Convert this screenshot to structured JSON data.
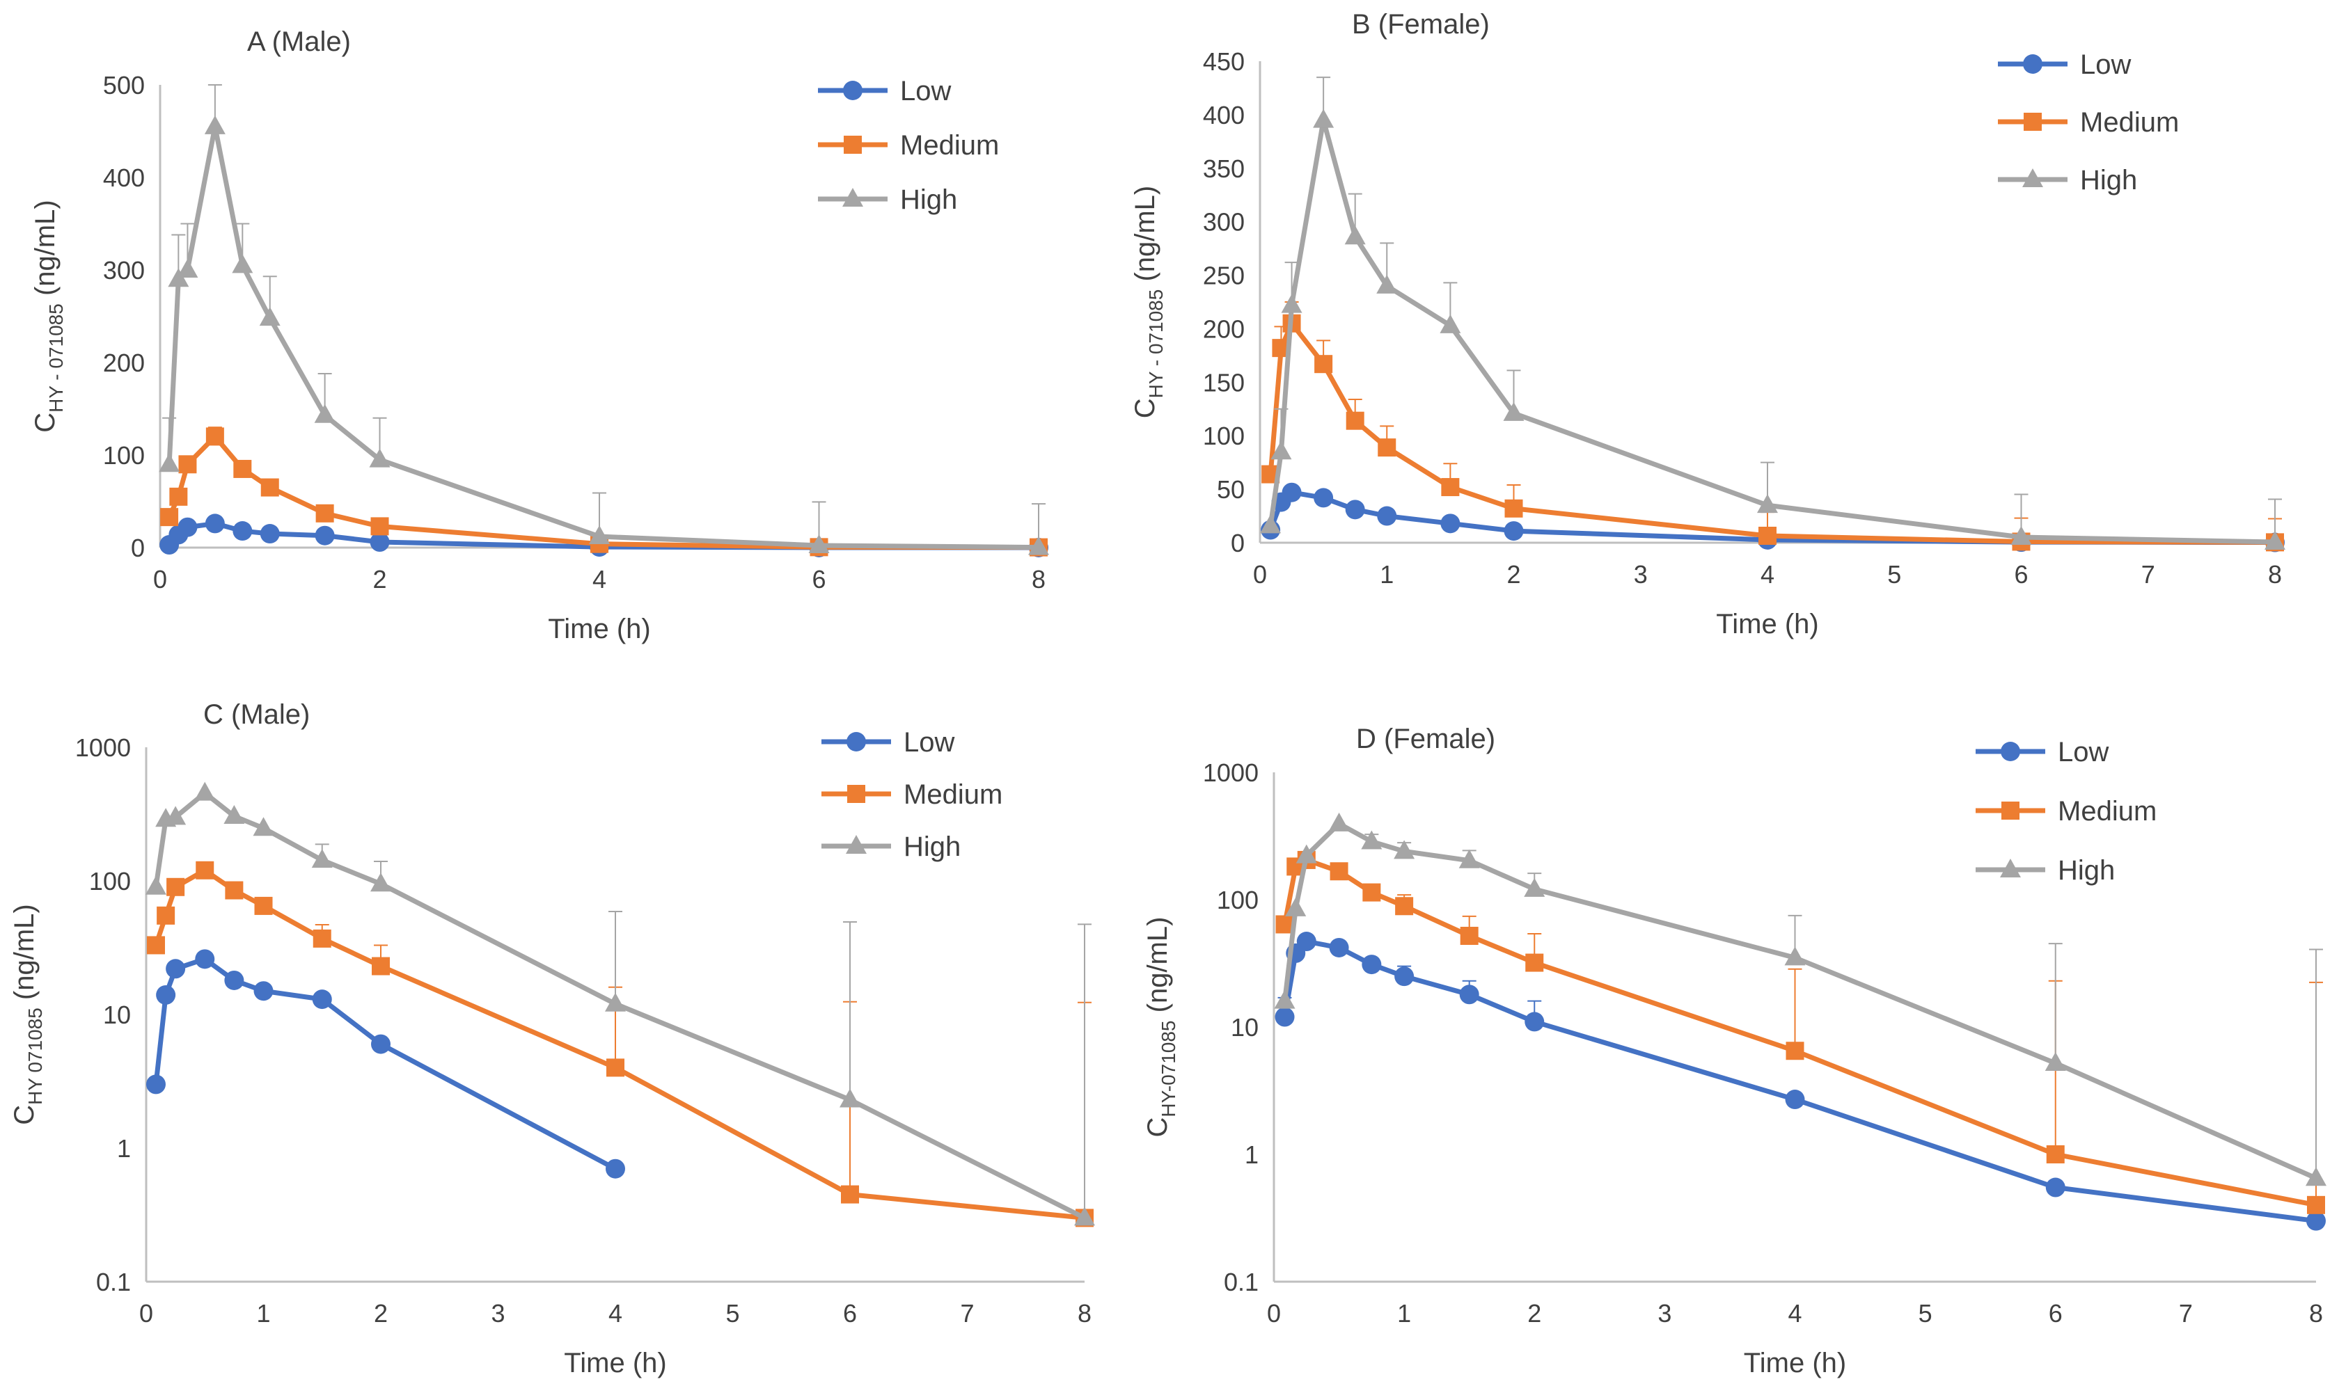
{
  "colors": {
    "low": "#4472C4",
    "medium": "#ED7D31",
    "high": "#A5A5A5"
  },
  "chart_data": [
    {
      "id": "A",
      "type": "line",
      "title": "A (Male)",
      "xlabel": "Time (h)",
      "ylabel_main": "C",
      "ylabel_sub": "HY - 071085",
      "ylabel_unit": "(ng/mL)",
      "yscale": "linear",
      "xlim": [
        0,
        8
      ],
      "ylim": [
        0,
        500
      ],
      "xticks": [
        0,
        2,
        4,
        6,
        8
      ],
      "yticks": [
        0,
        100,
        200,
        300,
        400,
        500
      ],
      "legend_position": "top-right",
      "series": [
        {
          "name": "Low",
          "key": "low",
          "marker": "circle",
          "x": [
            0.083,
            0.167,
            0.25,
            0.5,
            0.75,
            1,
            1.5,
            2,
            4,
            6,
            8
          ],
          "y": [
            3,
            14,
            22,
            26,
            18,
            15,
            13,
            6,
            0.7,
            0,
            0
          ],
          "err": [
            null,
            null,
            null,
            null,
            null,
            null,
            null,
            null,
            null,
            null,
            null
          ]
        },
        {
          "name": "Medium",
          "key": "medium",
          "marker": "square",
          "x": [
            0.083,
            0.167,
            0.25,
            0.5,
            0.75,
            1,
            1.5,
            2,
            4,
            6,
            8
          ],
          "y": [
            33,
            55,
            90,
            120,
            85,
            65,
            37,
            23,
            4,
            0.5,
            0.3
          ],
          "err": [
            null,
            null,
            null,
            10,
            8,
            null,
            null,
            null,
            null,
            null,
            null
          ]
        },
        {
          "name": "High",
          "key": "high",
          "marker": "triangle",
          "x": [
            0.083,
            0.167,
            0.25,
            0.5,
            0.75,
            1,
            1.5,
            2,
            4,
            6,
            8
          ],
          "y": [
            90,
            290,
            300,
            455,
            305,
            248,
            143,
            95,
            12,
            2.3,
            0.3
          ],
          "err": [
            50,
            48,
            50,
            47,
            45,
            45,
            45,
            45,
            47,
            47,
            47
          ]
        }
      ]
    },
    {
      "id": "B",
      "type": "line",
      "title": "B (Female)",
      "xlabel": "Time (h)",
      "ylabel_main": "C",
      "ylabel_sub": "HY - 071085",
      "ylabel_unit": "(ng/mL)",
      "yscale": "linear",
      "xlim": [
        0,
        8
      ],
      "ylim": [
        0,
        450
      ],
      "xticks": [
        0,
        1,
        2,
        3,
        4,
        5,
        6,
        7,
        8
      ],
      "yticks": [
        0,
        50,
        100,
        150,
        200,
        250,
        300,
        350,
        400,
        450
      ],
      "legend_position": "top-right",
      "series": [
        {
          "name": "Low",
          "key": "low",
          "marker": "circle",
          "x": [
            0.083,
            0.167,
            0.25,
            0.5,
            0.75,
            1,
            1.5,
            2,
            4,
            6,
            8
          ],
          "y": [
            12,
            38,
            47,
            42,
            31,
            25,
            18,
            11,
            2.7,
            0.55,
            0.3
          ],
          "err": [
            null,
            null,
            null,
            null,
            null,
            null,
            null,
            null,
            null,
            null,
            null
          ]
        },
        {
          "name": "Medium",
          "key": "medium",
          "marker": "square",
          "x": [
            0.083,
            0.167,
            0.25,
            0.5,
            0.75,
            1,
            1.5,
            2,
            4,
            6,
            8
          ],
          "y": [
            64,
            182,
            205,
            167,
            114,
            89,
            52,
            32,
            6.5,
            1,
            0.4
          ],
          "err": [
            null,
            20,
            20,
            22,
            20,
            20,
            22,
            22,
            22,
            22,
            22
          ]
        },
        {
          "name": "High",
          "key": "high",
          "marker": "triangle",
          "x": [
            0.083,
            0.167,
            0.25,
            0.5,
            0.75,
            1,
            1.5,
            2,
            4,
            6,
            8
          ],
          "y": [
            16,
            85,
            222,
            395,
            286,
            240,
            203,
            121,
            35,
            5.2,
            0.65
          ],
          "err": [
            null,
            40,
            40,
            40,
            40,
            40,
            40,
            40,
            40,
            40,
            40
          ]
        }
      ]
    },
    {
      "id": "C",
      "type": "line",
      "title": "C (Male)",
      "xlabel": "Time (h)",
      "ylabel_main": "C",
      "ylabel_sub": "HY  071085",
      "ylabel_unit": "(ng/mL)",
      "yscale": "log",
      "xlim": [
        0,
        8
      ],
      "ylim": [
        0.1,
        1000
      ],
      "xticks": [
        0,
        1,
        2,
        3,
        4,
        5,
        6,
        7,
        8
      ],
      "yticks": [
        0.1,
        1,
        10,
        100,
        1000
      ],
      "legend_position": "top-right",
      "series": [
        {
          "name": "Low",
          "key": "low",
          "marker": "circle",
          "x": [
            0.083,
            0.167,
            0.25,
            0.5,
            0.75,
            1,
            1.5,
            2,
            4
          ],
          "y": [
            3,
            14,
            22,
            26,
            18,
            15,
            13,
            6,
            0.7
          ],
          "err": [
            null,
            null,
            null,
            null,
            null,
            null,
            null,
            null,
            null
          ]
        },
        {
          "name": "Medium",
          "key": "medium",
          "marker": "square",
          "x": [
            0.083,
            0.167,
            0.25,
            0.5,
            0.75,
            1,
            1.5,
            2,
            4,
            6,
            8
          ],
          "y": [
            33,
            55,
            90,
            120,
            85,
            65,
            37,
            23,
            4,
            0.45,
            0.3
          ],
          "err": [
            null,
            null,
            null,
            null,
            null,
            null,
            10,
            10,
            12,
            12,
            12
          ]
        },
        {
          "name": "High",
          "key": "high",
          "marker": "triangle",
          "x": [
            0.083,
            0.167,
            0.25,
            0.5,
            0.75,
            1,
            1.5,
            2,
            4,
            6,
            8
          ],
          "y": [
            90,
            290,
            300,
            455,
            305,
            248,
            143,
            95,
            12,
            2.3,
            0.3
          ],
          "err": [
            null,
            null,
            null,
            null,
            null,
            null,
            45,
            45,
            47,
            47,
            47
          ]
        }
      ]
    },
    {
      "id": "D",
      "type": "line",
      "title": "D (Female)",
      "xlabel": "Time (h)",
      "ylabel_main": "C",
      "ylabel_sub": "HY-071085",
      "ylabel_unit": "(ng/mL)",
      "yscale": "log",
      "xlim": [
        0,
        8
      ],
      "ylim": [
        0.1,
        1000
      ],
      "xticks": [
        0,
        1,
        2,
        3,
        4,
        5,
        6,
        7,
        8
      ],
      "yticks": [
        0.1,
        1,
        10,
        100,
        1000
      ],
      "legend_position": "top-right",
      "series": [
        {
          "name": "Low",
          "key": "low",
          "marker": "circle",
          "x": [
            0.083,
            0.167,
            0.25,
            0.5,
            0.75,
            1,
            1.5,
            2,
            4,
            6,
            8
          ],
          "y": [
            12,
            38,
            47,
            42,
            31,
            25,
            18,
            11,
            2.7,
            0.55,
            0.3
          ],
          "err": [
            5,
            null,
            null,
            null,
            null,
            5,
            5,
            5,
            null,
            null,
            null
          ]
        },
        {
          "name": "Medium",
          "key": "medium",
          "marker": "square",
          "x": [
            0.083,
            0.167,
            0.25,
            0.5,
            0.75,
            1,
            1.5,
            2,
            4,
            6,
            8
          ],
          "y": [
            64,
            182,
            205,
            167,
            114,
            89,
            52,
            32,
            6.5,
            1,
            0.4
          ],
          "err": [
            null,
            null,
            null,
            null,
            null,
            20,
            22,
            22,
            22,
            22,
            22
          ]
        },
        {
          "name": "High",
          "key": "high",
          "marker": "triangle",
          "x": [
            0.083,
            0.167,
            0.25,
            0.5,
            0.75,
            1,
            1.5,
            2,
            4,
            6,
            8
          ],
          "y": [
            16,
            85,
            222,
            395,
            286,
            240,
            203,
            121,
            35,
            5.2,
            0.65
          ],
          "err": [
            null,
            null,
            null,
            null,
            40,
            40,
            40,
            40,
            40,
            40,
            40
          ]
        }
      ]
    }
  ]
}
